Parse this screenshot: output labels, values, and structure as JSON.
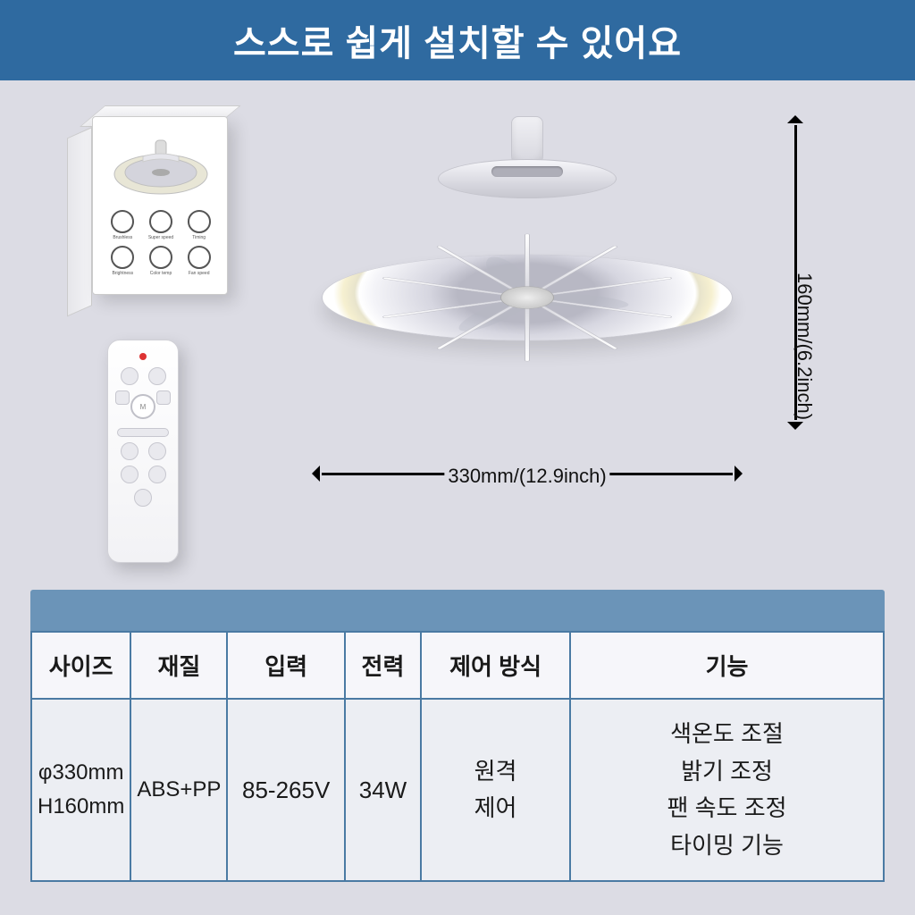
{
  "colors": {
    "header_bg": "#2f6aa0",
    "header_text": "#ffffff",
    "page_bg": "#dcdce4",
    "table_border": "#4a7aa3",
    "table_bar": "#6b94b8",
    "text": "#1a1a1a"
  },
  "header": {
    "title": "스스로 쉽게 설치할 수 있어요"
  },
  "dimensions": {
    "width_label": "330mm/(12.9inch)",
    "height_label": "160mm/(6.2inch)"
  },
  "spec": {
    "headers": [
      "사이즈",
      "재질",
      "입력",
      "전력",
      "제어 방식",
      "기능"
    ],
    "row": {
      "size_line1": "φ330mm",
      "size_line2": "H160mm",
      "material": "ABS+PP",
      "input": "85-265V",
      "power": "34W",
      "control_line1": "원격",
      "control_line2": "제어",
      "func_line1": "색온도 조절",
      "func_line2": "밝기 조정",
      "func_line3": "팬 속도 조정",
      "func_line4": "타이밍 기능"
    },
    "col_widths_pct": [
      11,
      10,
      14,
      9,
      18,
      38
    ]
  },
  "box": {
    "icon_labels": [
      "Brushless",
      "Super speed",
      "Timing",
      "Brightness",
      "Color temp",
      "Fan speed"
    ]
  }
}
